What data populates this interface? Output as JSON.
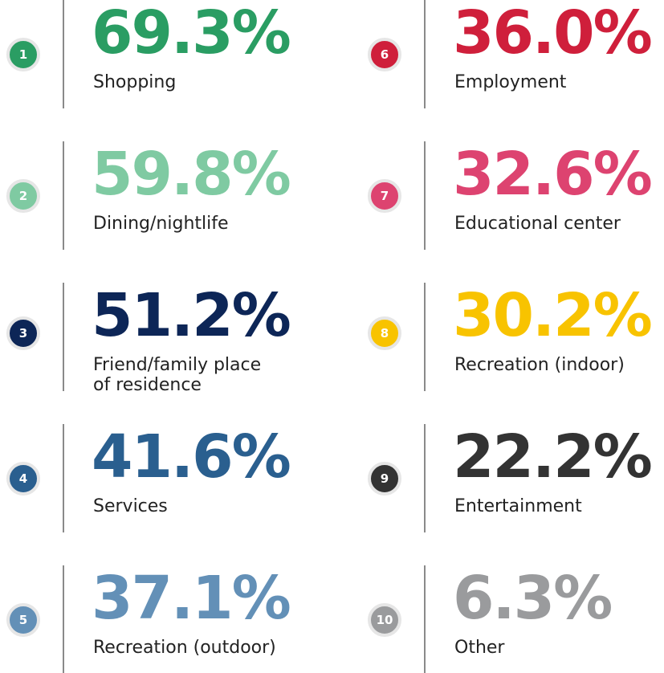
{
  "items": [
    {
      "rank": "1",
      "value": "69.3%",
      "label": "Shopping",
      "color": "#2a9d63"
    },
    {
      "rank": "2",
      "value": "59.8%",
      "label": "Dining/nightlife",
      "color": "#7fcaa2"
    },
    {
      "rank": "3",
      "value": "51.2%",
      "label": "Friend/family place\nof residence",
      "color": "#0d2657"
    },
    {
      "rank": "4",
      "value": "41.6%",
      "label": "Services",
      "color": "#2a5f8f"
    },
    {
      "rank": "5",
      "value": "37.1%",
      "label": "Recreation (outdoor)",
      "color": "#6390b7"
    },
    {
      "rank": "6",
      "value": "36.0%",
      "label": "Employment",
      "color": "#cf1f3b"
    },
    {
      "rank": "7",
      "value": "32.6%",
      "label": "Educational center",
      "color": "#dd4370"
    },
    {
      "rank": "8",
      "value": "30.2%",
      "label": "Recreation (indoor)",
      "color": "#f8c300"
    },
    {
      "rank": "9",
      "value": "22.2%",
      "label": "Entertainment",
      "color": "#333333"
    },
    {
      "rank": "10",
      "value": "6.3%",
      "label": "Other",
      "color": "#9a9b9d"
    }
  ]
}
